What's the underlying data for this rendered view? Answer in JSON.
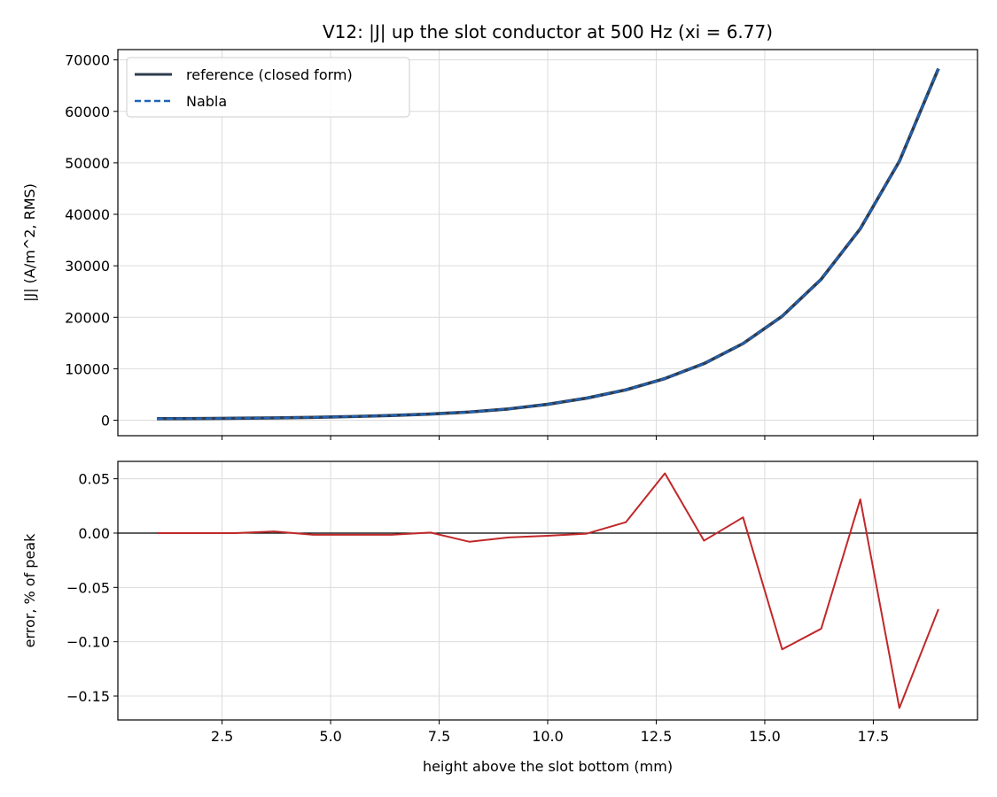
{
  "chart_data": [
    {
      "type": "line",
      "title": "V12: |J| up the slot conductor at 500 Hz (xi = 6.77)",
      "xlabel": "",
      "ylabel": "|J| (A/m^2, RMS)",
      "xlim": [
        0.1,
        19.9
      ],
      "ylim": [
        -3000,
        72000
      ],
      "yticks": [
        0,
        10000,
        20000,
        30000,
        40000,
        50000,
        60000,
        70000
      ],
      "ytick_labels": [
        "0",
        "10000",
        "20000",
        "30000",
        "40000",
        "50000",
        "60000",
        "70000"
      ],
      "grid": true,
      "legend_position": "upper-left",
      "x": [
        1.0,
        1.9,
        2.8,
        3.7,
        4.6,
        5.5,
        6.4,
        7.3,
        8.2,
        9.1,
        10.0,
        10.9,
        11.8,
        12.7,
        13.6,
        14.5,
        15.4,
        16.3,
        17.2,
        18.1,
        19.0
      ],
      "series": [
        {
          "name": "reference (closed form)",
          "color": "#2e3b4e",
          "style": "solid",
          "values": [
            300,
            330,
            380,
            450,
            560,
            720,
            930,
            1200,
            1600,
            2200,
            3100,
            4300,
            5900,
            8100,
            11000,
            14900,
            20200,
            27400,
            37200,
            50300,
            68300
          ]
        },
        {
          "name": "Nabla",
          "color": "#1f63b5",
          "style": "dashed",
          "values": [
            300,
            330,
            380,
            450,
            560,
            720,
            930,
            1200,
            1600,
            2200,
            3100,
            4300,
            5900,
            8100,
            11000,
            14900,
            20200,
            27400,
            37200,
            50300,
            68300
          ]
        }
      ]
    },
    {
      "type": "line",
      "title": "",
      "xlabel": "height above the slot bottom (mm)",
      "ylabel": "error, % of peak",
      "xlim": [
        0.1,
        19.9
      ],
      "ylim": [
        -0.172,
        0.066
      ],
      "xticks": [
        2.5,
        5.0,
        7.5,
        10.0,
        12.5,
        15.0,
        17.5
      ],
      "xtick_labels": [
        "2.5",
        "5.0",
        "7.5",
        "10.0",
        "12.5",
        "15.0",
        "17.5"
      ],
      "yticks": [
        0.05,
        0.0,
        -0.05,
        -0.1,
        -0.15
      ],
      "ytick_labels": [
        "0.05",
        "0.00",
        "−0.05",
        "−0.10",
        "−0.15"
      ],
      "grid": true,
      "reference_line": 0,
      "x": [
        1.0,
        1.9,
        2.8,
        3.7,
        4.6,
        5.5,
        6.4,
        7.3,
        8.2,
        9.1,
        10.0,
        10.9,
        11.8,
        12.7,
        13.6,
        14.5,
        15.4,
        16.3,
        17.2,
        18.1,
        19.0
      ],
      "series": [
        {
          "color": "#c0282a",
          "values": [
            0.0,
            0.0,
            0.0,
            0.0015,
            -0.0015,
            -0.0015,
            -0.0015,
            0.0005,
            -0.008,
            -0.004,
            -0.0025,
            -0.0005,
            0.01,
            0.055,
            -0.007,
            0.0145,
            -0.107,
            -0.088,
            0.031,
            -0.161,
            -0.07
          ]
        }
      ]
    }
  ]
}
